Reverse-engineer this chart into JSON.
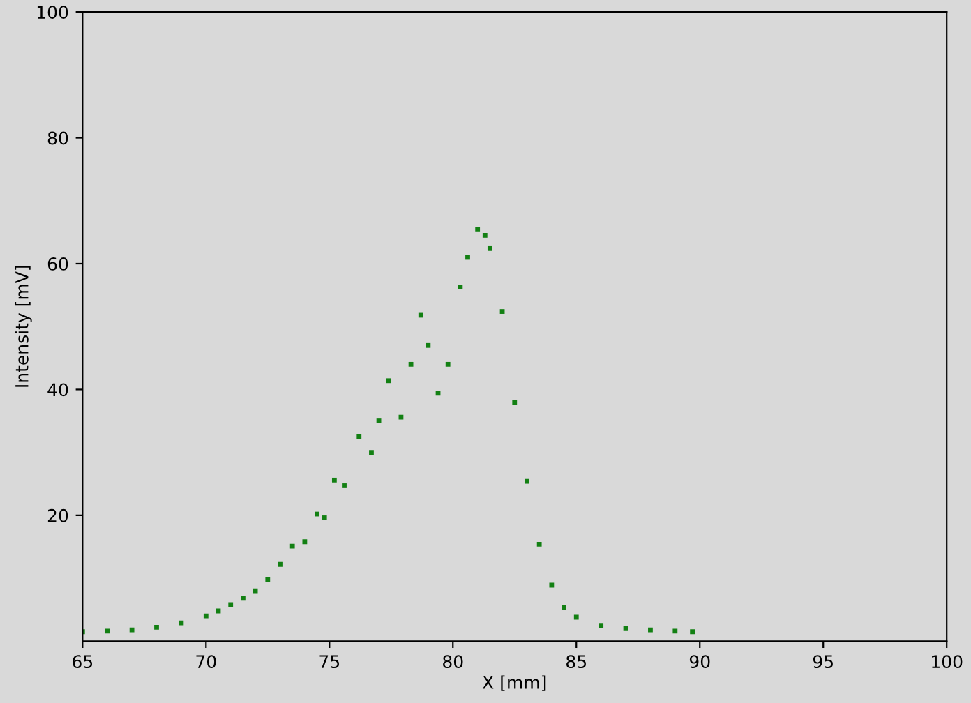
{
  "chart_data": {
    "type": "scatter",
    "xlabel": "X [mm]",
    "ylabel": "Intensity [mV]",
    "xlim": [
      65,
      100
    ],
    "ylim": [
      0,
      100
    ],
    "xticks": [
      65,
      70,
      75,
      80,
      85,
      90,
      95,
      100
    ],
    "yticks": [
      20,
      40,
      60,
      80,
      100
    ],
    "grid": false,
    "marker": "square",
    "series": [
      {
        "color": "#138013",
        "x": [
          65,
          66,
          67,
          68,
          69,
          70,
          70.5,
          71,
          71.5,
          72,
          72.5,
          73,
          73.5,
          74,
          74.5,
          74.8,
          75.2,
          75.6,
          76.2,
          76.7,
          77.0,
          77.4,
          77.9,
          78.3,
          78.7,
          79.0,
          79.4,
          79.8,
          80.3,
          80.6,
          81,
          81.3,
          81.5,
          82,
          82.5,
          83,
          83.5,
          84,
          84.5,
          85,
          86,
          87,
          88,
          89,
          89.7
        ],
        "values": [
          1.5,
          1.6,
          1.8,
          2.2,
          2.9,
          4,
          4.8,
          5.8,
          6.8,
          8,
          9.8,
          12.2,
          15.1,
          15.8,
          20.2,
          19.6,
          25.6,
          24.7,
          32.5,
          30,
          35,
          41.4,
          35.6,
          44,
          51.8,
          47,
          39.4,
          44,
          56.3,
          61,
          65.5,
          64.5,
          62.4,
          52.4,
          37.9,
          25.4,
          15.4,
          8.9,
          5.3,
          3.8,
          2.4,
          2,
          1.8,
          1.6,
          1.5
        ]
      }
    ]
  }
}
